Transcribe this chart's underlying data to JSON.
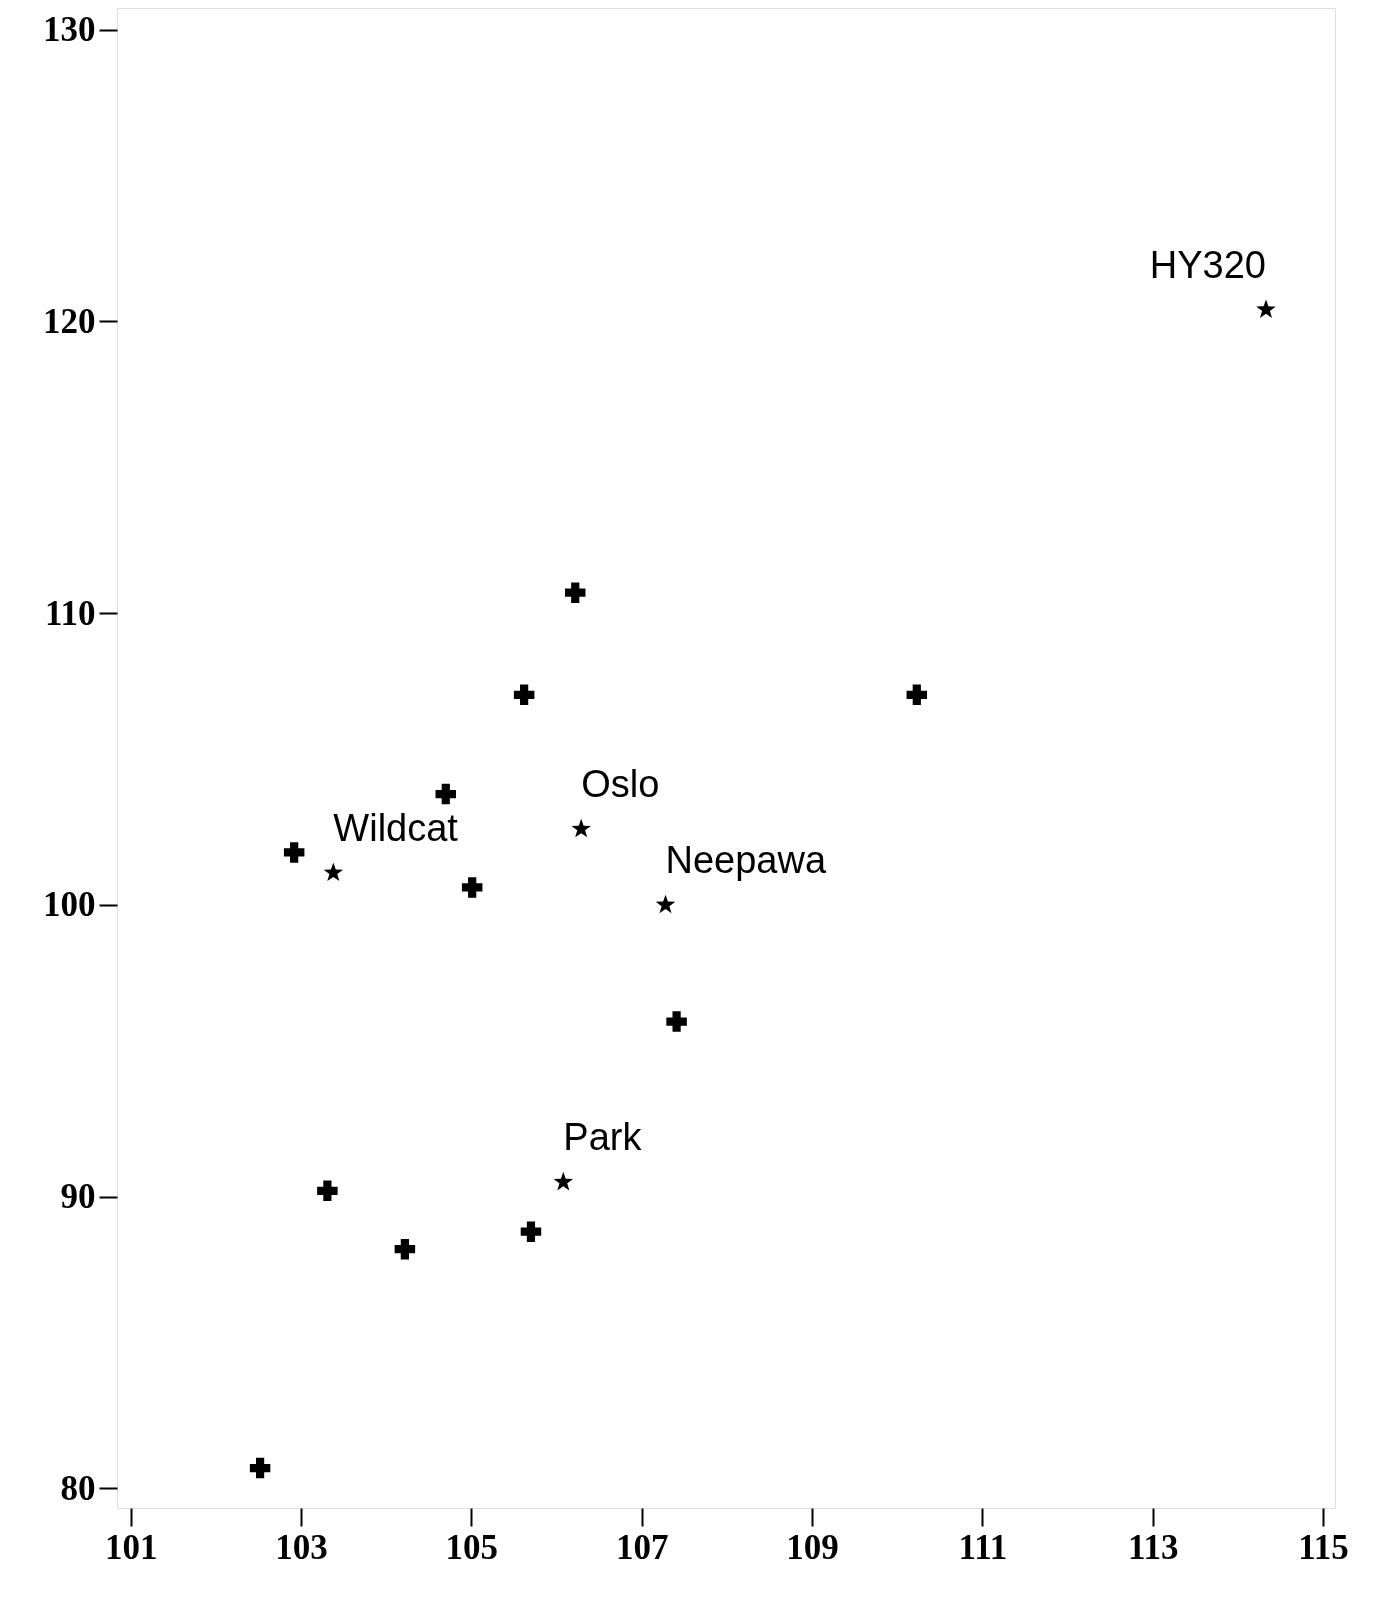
{
  "chart_data": {
    "type": "scatter",
    "xlim": [
      100.84,
      115.14
    ],
    "ylim": [
      79.33,
      130.74
    ],
    "xticks": [
      101,
      103,
      105,
      107,
      109,
      111,
      113,
      115
    ],
    "yticks": [
      80,
      90,
      100,
      110,
      120,
      130
    ],
    "grid": false,
    "series": [
      {
        "color": "#000000",
        "marker": "cross",
        "x": [
          106.22,
          105.62,
          110.23,
          104.7,
          102.92,
          105.01,
          107.41,
          103.31,
          104.22,
          105.7,
          102.52
        ],
        "values": [
          110.7,
          107.2,
          107.2,
          103.8,
          101.8,
          100.6,
          96.0,
          90.2,
          88.2,
          88.8,
          80.7
        ]
      },
      {
        "color": "#000000",
        "marker": "star",
        "x": [
          114.33,
          106.29,
          103.38,
          107.28,
          106.08
        ],
        "values": [
          120.4,
          102.6,
          101.1,
          100.0,
          90.5
        ]
      }
    ],
    "annotations": [
      {
        "text": "HY320",
        "x": 114.33,
        "y": 120.4
      },
      {
        "text": "Oslo",
        "x": 106.29,
        "y": 102.6
      },
      {
        "text": "Wildcat",
        "x": 103.38,
        "y": 101.1
      },
      {
        "text": "Neepawa",
        "x": 107.28,
        "y": 100.0
      },
      {
        "text": "Park",
        "x": 106.08,
        "y": 90.5
      }
    ]
  }
}
